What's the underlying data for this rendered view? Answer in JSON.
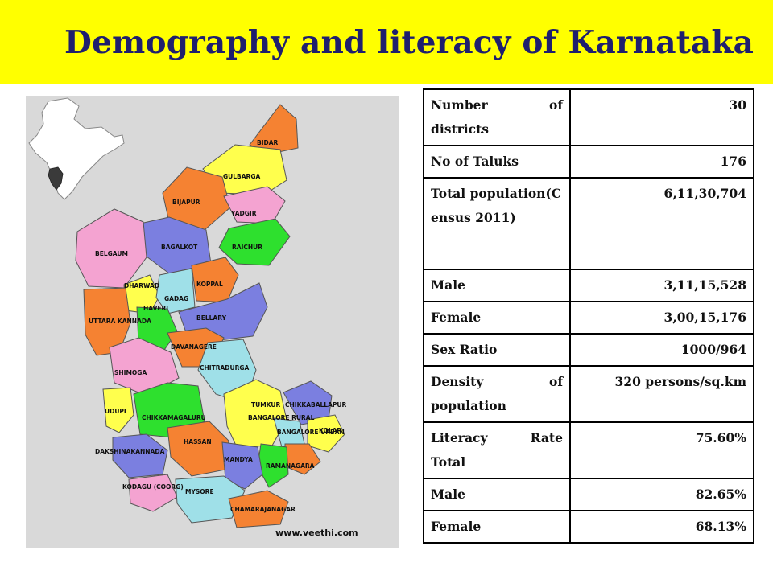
{
  "title": "Demography and literacy of Karnataka",
  "map": {
    "credit": "www.veethi.com",
    "districts": [
      "BIDAR",
      "GULBARGA",
      "BIJAPUR",
      "YADGIR",
      "RAICHUR",
      "BAGALKOT",
      "BELGAUM",
      "DHARWAD",
      "GADAG",
      "KOPPAL",
      "BELLARY",
      "UTTARA KANNADA",
      "HAVERI",
      "DAVANAGERE",
      "SHIMOGA",
      "CHITRADURGA",
      "UDUPI",
      "CHIKKAMAGALURU",
      "TUMKUR",
      "CHIKKABALLAPUR",
      "BANGALORE RURAL",
      "KOLAR",
      "DAKSHINAKANNADA",
      "HASSAN",
      "BANGALORE URBAN",
      "RAMANAGARA",
      "MANDYA",
      "KODAGU (COORG)",
      "MYSORE",
      "CHAMARAJANAGAR"
    ]
  },
  "table": {
    "rows": [
      {
        "label": "Number of districts",
        "value": "30"
      },
      {
        "label": "No of Taluks",
        "value": "176"
      },
      {
        "label": "Total population(Census 2011)",
        "value": "6,11,30,704"
      },
      {
        "label": "Male",
        "value": "3,11,15,528"
      },
      {
        "label": "Female",
        "value": "3,00,15,176"
      },
      {
        "label": "Sex Ratio",
        "value": "1000/964"
      },
      {
        "label": "Density of population",
        "value": "320 persons/sq.km"
      },
      {
        "label": "Literacy Rate Total",
        "value": "75.60%"
      },
      {
        "label": "Male",
        "value": "82.65%"
      },
      {
        "label": "Female",
        "value": "68.13%"
      }
    ]
  }
}
